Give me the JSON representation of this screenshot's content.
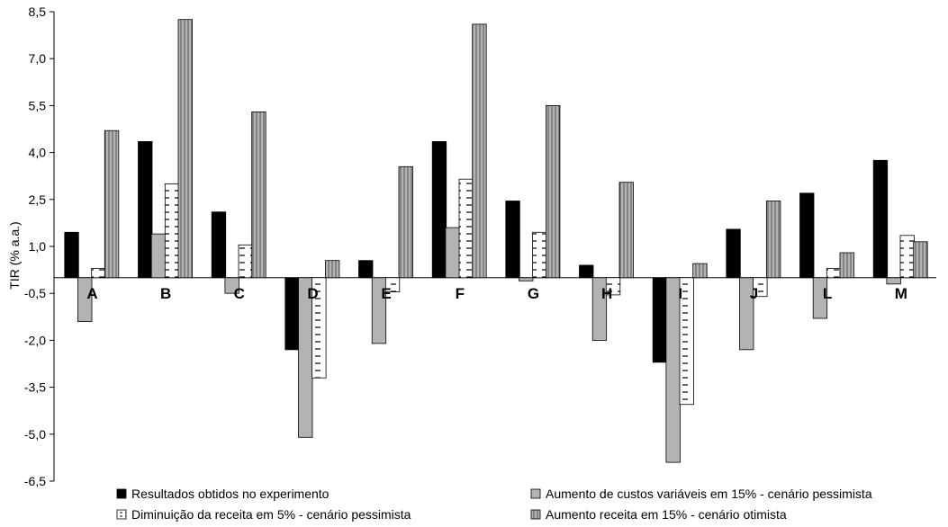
{
  "chart_data": {
    "type": "bar",
    "title": "",
    "xlabel": "",
    "ylabel": "TIR (% a.a.)",
    "ylim": [
      -6.5,
      8.5
    ],
    "yticks": [
      "8,5",
      "7,0",
      "5,5",
      "4,0",
      "2,5",
      "1,0",
      "-0,5",
      "-2,0",
      "-3,5",
      "-5,0",
      "-6,5"
    ],
    "ytick_values": [
      8.5,
      7.0,
      5.5,
      4.0,
      2.5,
      1.0,
      -0.5,
      -2.0,
      -3.5,
      -5.0,
      -6.5
    ],
    "grid": false,
    "legend_position": "bottom",
    "categories": [
      "A",
      "B",
      "C",
      "D",
      "E",
      "F",
      "G",
      "H",
      "I",
      "J",
      "L",
      "M"
    ],
    "series": [
      {
        "name": "Resultados obtidos no experimento",
        "color": "#000000",
        "pattern": "solid",
        "values": [
          1.45,
          4.35,
          2.1,
          -2.3,
          0.55,
          4.35,
          2.45,
          0.4,
          -2.7,
          1.55,
          2.7,
          3.75
        ]
      },
      {
        "name": "Aumento de custos variáveis em 15% - cenário pessimista",
        "color": "#b3b3b3",
        "pattern": "solid",
        "values": [
          -1.4,
          1.4,
          -0.5,
          -5.1,
          -2.1,
          1.6,
          -0.1,
          -2.0,
          -5.9,
          -2.3,
          -1.3,
          -0.2
        ]
      },
      {
        "name": "Diminuição da receita em 5% - cenário pessimista",
        "color": "#ffffff",
        "pattern": "dashes",
        "values": [
          0.3,
          3.0,
          1.05,
          -3.2,
          -0.45,
          3.15,
          1.45,
          -0.55,
          -4.05,
          -0.6,
          0.3,
          1.35
        ]
      },
      {
        "name": "Aumento receita em 15% - cenário otimista",
        "color": "#b3b3b3",
        "pattern": "vlines",
        "values": [
          4.7,
          8.25,
          5.3,
          0.55,
          3.55,
          8.1,
          5.5,
          3.05,
          0.45,
          2.45,
          0.8,
          1.15
        ]
      }
    ]
  }
}
